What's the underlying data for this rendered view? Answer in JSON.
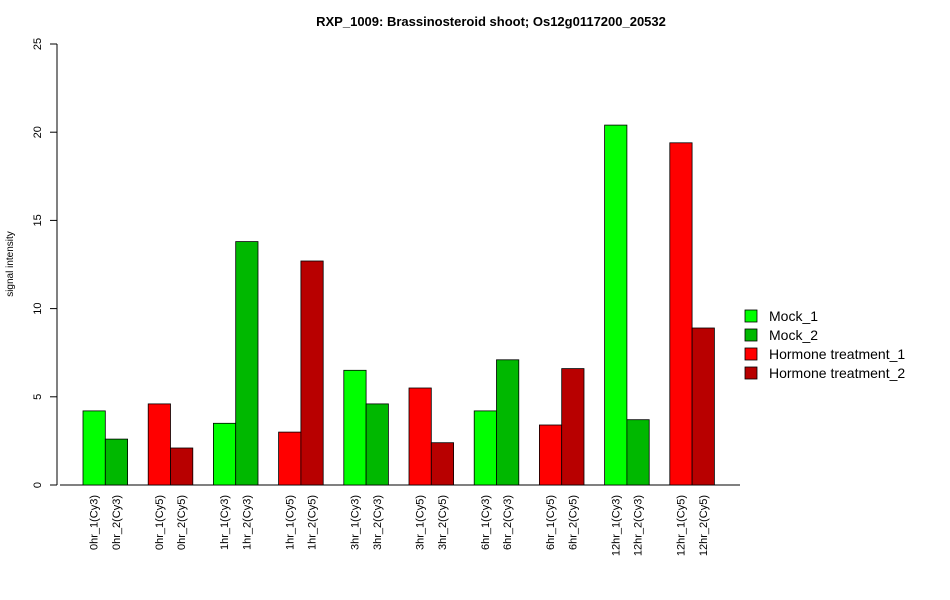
{
  "chart_data": {
    "type": "bar",
    "title": "RXP_1009: Brassinosteroid shoot; Os12g0117200_20532",
    "xlabel": "",
    "ylabel": "signal intensity",
    "ylim": [
      0,
      25
    ],
    "yticks": [
      0,
      5,
      10,
      15,
      20,
      25
    ],
    "grid": false,
    "legend_placement": "right",
    "bars": [
      {
        "label": "0hr_1(Cy3)",
        "value": 4.2,
        "series": "Mock_1"
      },
      {
        "label": "0hr_2(Cy3)",
        "value": 2.6,
        "series": "Mock_2"
      },
      {
        "label": "0hr_1(Cy5)",
        "value": 4.6,
        "series": "Hormone treatment_1"
      },
      {
        "label": "0hr_2(Cy5)",
        "value": 2.1,
        "series": "Hormone treatment_2"
      },
      {
        "label": "1hr_1(Cy3)",
        "value": 3.5,
        "series": "Mock_1"
      },
      {
        "label": "1hr_2(Cy3)",
        "value": 13.8,
        "series": "Mock_2"
      },
      {
        "label": "1hr_1(Cy5)",
        "value": 3.0,
        "series": "Hormone treatment_1"
      },
      {
        "label": "1hr_2(Cy5)",
        "value": 12.7,
        "series": "Hormone treatment_2"
      },
      {
        "label": "3hr_1(Cy3)",
        "value": 6.5,
        "series": "Mock_1"
      },
      {
        "label": "3hr_2(Cy3)",
        "value": 4.6,
        "series": "Mock_2"
      },
      {
        "label": "3hr_1(Cy5)",
        "value": 5.5,
        "series": "Hormone treatment_1"
      },
      {
        "label": "3hr_2(Cy5)",
        "value": 2.4,
        "series": "Hormone treatment_2"
      },
      {
        "label": "6hr_1(Cy3)",
        "value": 4.2,
        "series": "Mock_1"
      },
      {
        "label": "6hr_2(Cy3)",
        "value": 7.1,
        "series": "Mock_2"
      },
      {
        "label": "6hr_1(Cy5)",
        "value": 3.4,
        "series": "Hormone treatment_1"
      },
      {
        "label": "6hr_2(Cy5)",
        "value": 6.6,
        "series": "Hormone treatment_2"
      },
      {
        "label": "12hr_1(Cy3)",
        "value": 20.4,
        "series": "Mock_1"
      },
      {
        "label": "12hr_2(Cy3)",
        "value": 3.7,
        "series": "Mock_2"
      },
      {
        "label": "12hr_1(Cy5)",
        "value": 19.4,
        "series": "Hormone treatment_1"
      },
      {
        "label": "12hr_2(Cy5)",
        "value": 8.9,
        "series": "Hormone treatment_2"
      }
    ],
    "legend": [
      {
        "name": "Mock_1",
        "color": "#00ff00"
      },
      {
        "name": "Mock_2",
        "color": "#00b800"
      },
      {
        "name": "Hormone treatment_1",
        "color": "#ff0000"
      },
      {
        "name": "Hormone treatment_2",
        "color": "#b80000"
      }
    ]
  }
}
